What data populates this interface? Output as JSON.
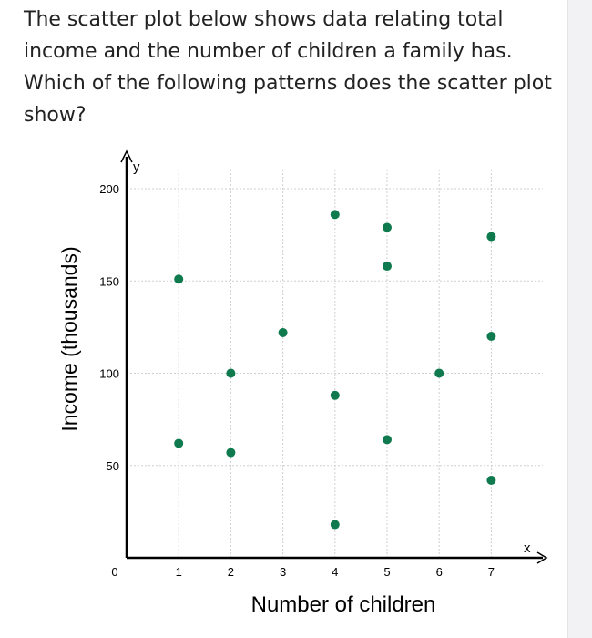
{
  "question": {
    "text": "The scatter plot below shows data relating total income and the number of children a family has. Which of the following patterns does the scatter plot show?"
  },
  "chart_data": {
    "type": "scatter",
    "title": "",
    "xlabel": "Number of children",
    "ylabel": "Income (thousands)",
    "x_axis_letter": "x",
    "y_axis_letter": "y",
    "xlim": [
      0,
      8
    ],
    "ylim": [
      0,
      210
    ],
    "x_ticks": [
      1,
      2,
      3,
      4,
      5,
      6,
      7
    ],
    "y_ticks": [
      50,
      100,
      150,
      200
    ],
    "origin_label": "0",
    "grid": true,
    "legend": "none",
    "point_color": "#0f7a4e",
    "points": [
      {
        "x": 1,
        "y": 151
      },
      {
        "x": 1,
        "y": 62
      },
      {
        "x": 2,
        "y": 100
      },
      {
        "x": 2,
        "y": 57
      },
      {
        "x": 3,
        "y": 122
      },
      {
        "x": 4,
        "y": 186
      },
      {
        "x": 4,
        "y": 88
      },
      {
        "x": 4,
        "y": 18
      },
      {
        "x": 5,
        "y": 179
      },
      {
        "x": 5,
        "y": 158
      },
      {
        "x": 5,
        "y": 64
      },
      {
        "x": 6,
        "y": 100
      },
      {
        "x": 7,
        "y": 174
      },
      {
        "x": 7,
        "y": 120
      },
      {
        "x": 7,
        "y": 42
      }
    ]
  }
}
